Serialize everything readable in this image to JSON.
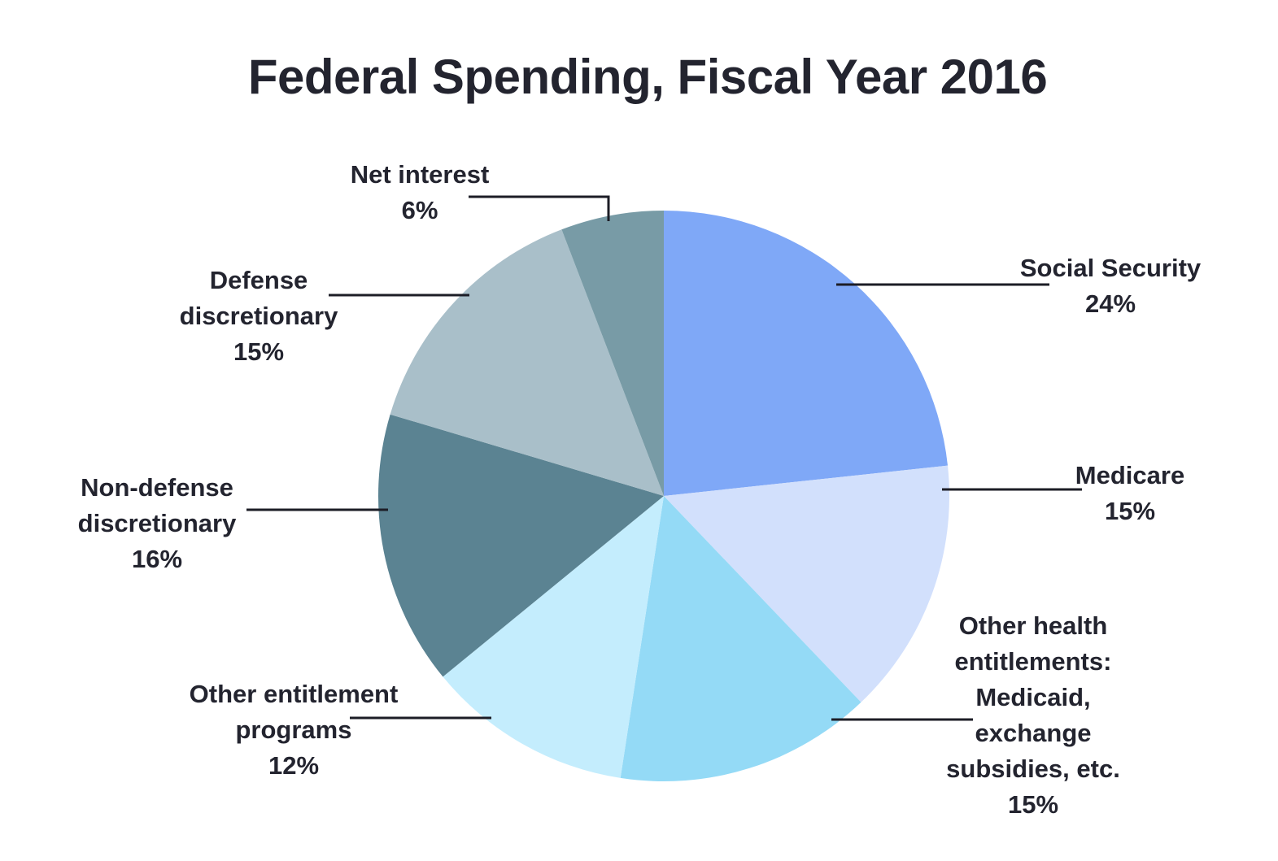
{
  "chart_data": {
    "type": "pie",
    "title": "Federal Spending, Fiscal Year 2016",
    "slices": [
      {
        "label": "Social Security",
        "value": 24,
        "value_label": "24%",
        "color": "#7fa8f7"
      },
      {
        "label": "Medicare",
        "value": 15,
        "value_label": "15%",
        "color": "#d2e0fc"
      },
      {
        "label": "Other health entitlements: Medicaid, exchange subsidies, etc.",
        "value": 15,
        "value_label": "15%",
        "color": "#94daf6"
      },
      {
        "label": "Other entitlement programs",
        "value": 12,
        "value_label": "12%",
        "color": "#c4edfd"
      },
      {
        "label": "Non-defense discretionary",
        "value": 16,
        "value_label": "16%",
        "color": "#5b8392"
      },
      {
        "label": "Defense discretionary",
        "value": 15,
        "value_label": "15%",
        "color": "#a9bfc9"
      },
      {
        "label": "Net interest",
        "value": 6,
        "value_label": "6%",
        "color": "#789ba6"
      }
    ],
    "start_angle": "12 o'clock",
    "direction": "clockwise",
    "legend": "none",
    "labels": "outside with leader lines"
  }
}
